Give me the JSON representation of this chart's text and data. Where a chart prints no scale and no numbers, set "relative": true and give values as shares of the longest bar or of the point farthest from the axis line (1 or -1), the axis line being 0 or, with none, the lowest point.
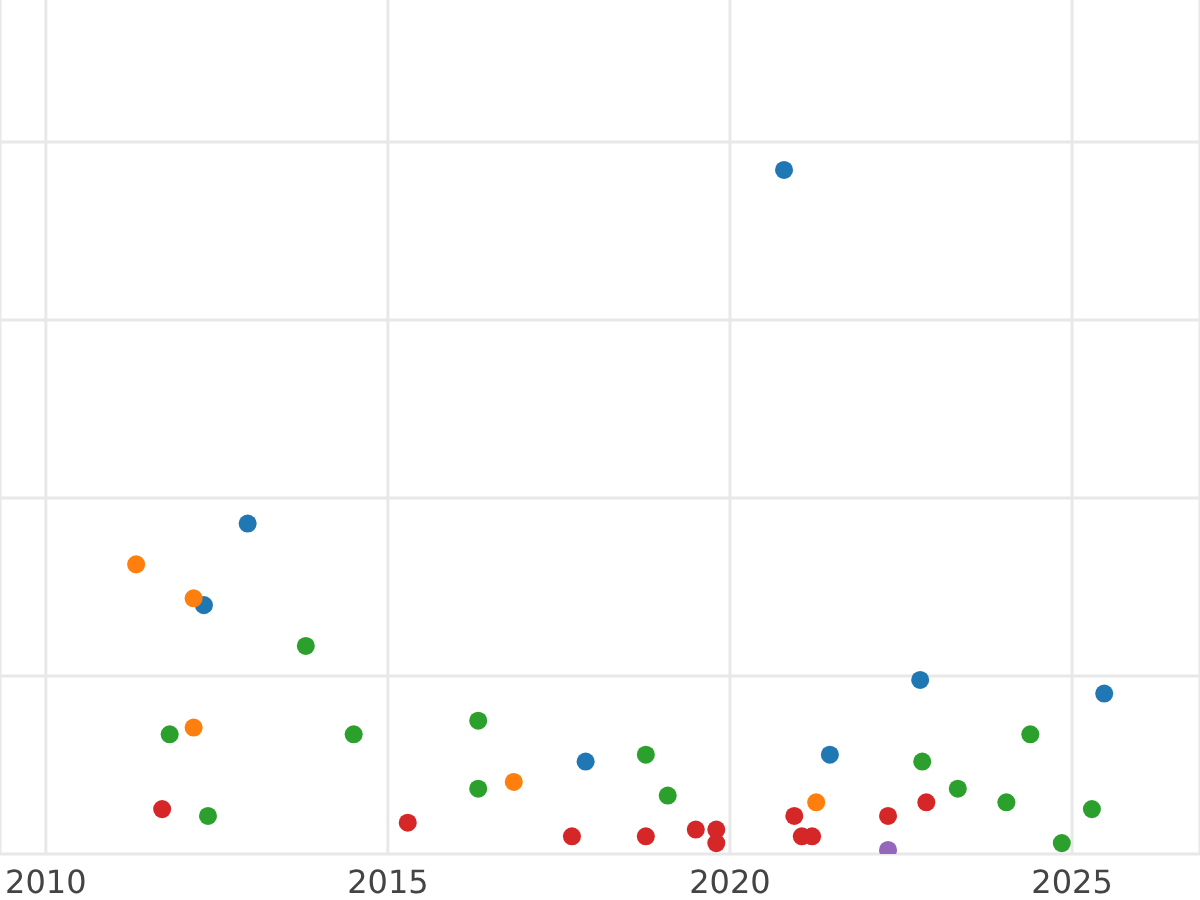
{
  "chart_data": {
    "type": "scatter",
    "relative": true,
    "grid": true,
    "marker": "circle",
    "xlim": [
      2009.33,
      2026.87
    ],
    "xticks": [
      2010,
      2015,
      2020,
      2025
    ],
    "series": [
      {
        "color": "#1f77b4",
        "x": [
          2012.95,
          2012.31,
          2020.79,
          2017.89,
          2021.46,
          2022.78,
          2025.47
        ],
        "values": [
          0.48,
          0.36,
          1,
          0.13,
          0.14,
          0.25,
          0.23
        ]
      },
      {
        "color": "#ff7f0e",
        "x": [
          2011.32,
          2012.16,
          2012.16,
          2016.84,
          2021.26
        ],
        "values": [
          0.42,
          0.37,
          0.18,
          0.1,
          0.07
        ]
      },
      {
        "color": "#2ca02c",
        "x": [
          2011.81,
          2012.37,
          2013.8,
          2014.5,
          2016.32,
          2016.32,
          2018.77,
          2019.09,
          2022.81,
          2023.33,
          2024.04,
          2024.39,
          2024.85,
          2025.29
        ],
        "values": [
          0.17,
          0.05,
          0.3,
          0.17,
          0.19,
          0.09,
          0.14,
          0.08,
          0.13,
          0.09,
          0.07,
          0.17,
          0.01,
          0.06
        ]
      },
      {
        "color": "#d62728",
        "x": [
          2011.7,
          2015.29,
          2017.69,
          2018.77,
          2019.5,
          2019.8,
          2019.8,
          2020.94,
          2021.05,
          2021.2,
          2022.31,
          2022.87
        ],
        "values": [
          0.06,
          0.04,
          0.02,
          0.02,
          0.03,
          0.03,
          0.01,
          0.05,
          0.02,
          0.02,
          0.05,
          0.07
        ]
      },
      {
        "color": "#9467bd",
        "x": [
          2022.31
        ],
        "values": [
          0
        ]
      }
    ]
  }
}
